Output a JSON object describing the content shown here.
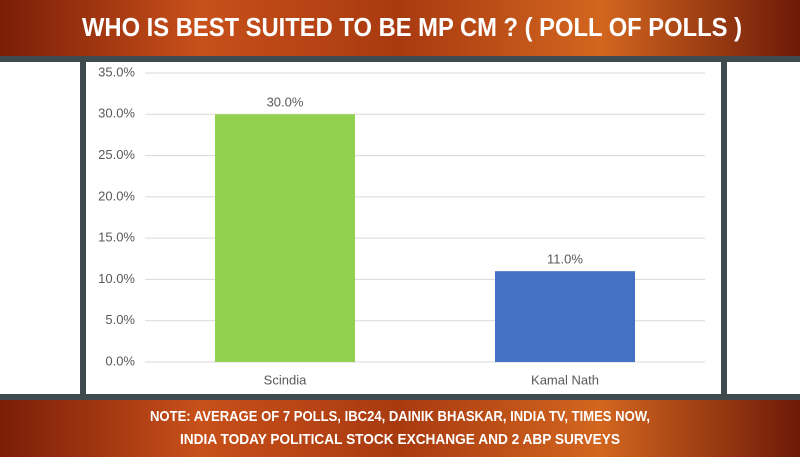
{
  "chart_data": {
    "type": "bar",
    "title": "WHO IS BEST SUITED TO BE MP CM ? ( POLL OF POLLS )",
    "note": [
      "NOTE: AVERAGE OF 7 POLLS, IBC24, DAINIK BHASKAR, INDIA TV, TIMES NOW,",
      "INDIA TODAY POLITICAL STOCK EXCHANGE AND 2 ABP SURVEYS"
    ],
    "categories": [
      "Scindia",
      "Kamal Nath"
    ],
    "values": [
      30,
      11
    ],
    "value_labels": [
      "30.0%",
      "11.0%"
    ],
    "colors": [
      "#92d050",
      "#4472c4"
    ],
    "ylim": [
      0,
      35
    ],
    "yticks": [
      {
        "value": 0,
        "label": "0.0%"
      },
      {
        "value": 5,
        "label": "5.0%"
      },
      {
        "value": 10,
        "label": "10.0%"
      },
      {
        "value": 15,
        "label": "15.0%"
      },
      {
        "value": 20,
        "label": "20.0%"
      },
      {
        "value": 25,
        "label": "25.0%"
      },
      {
        "value": 30,
        "label": "30.0%"
      },
      {
        "value": 35,
        "label": "35.0%"
      }
    ],
    "grid": true
  }
}
